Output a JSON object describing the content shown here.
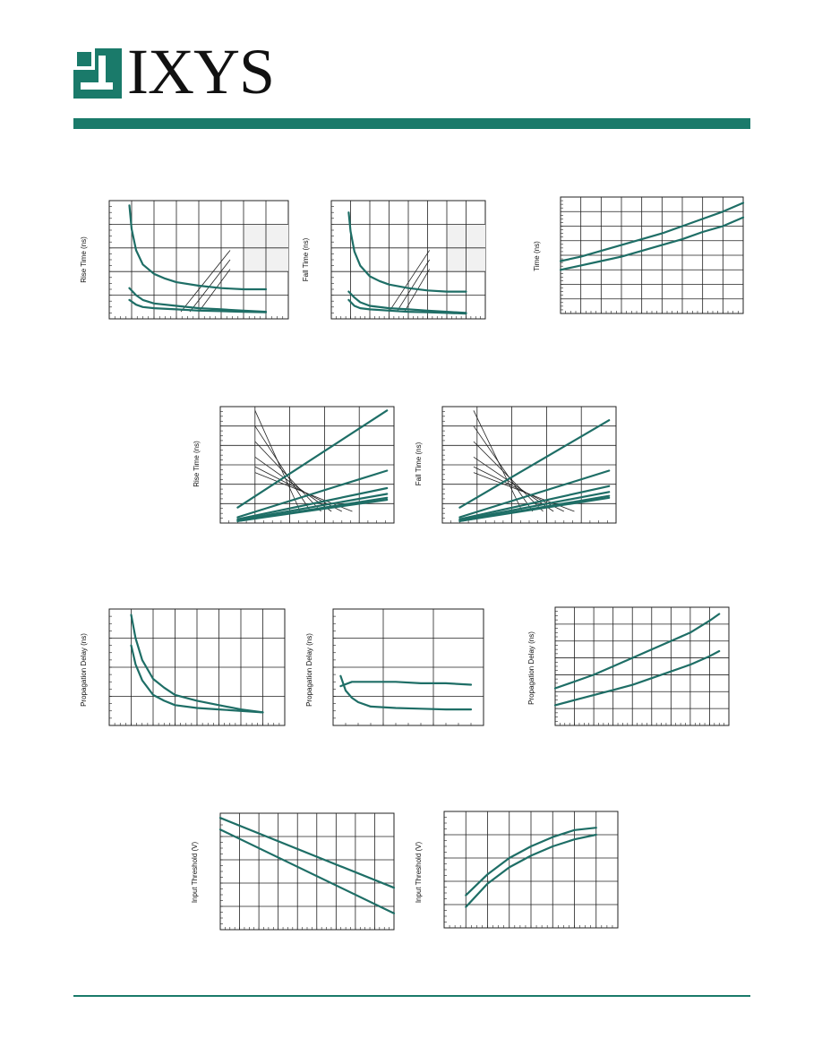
{
  "brand": {
    "name": "IXYS",
    "color": "#1a7a6a"
  },
  "colors": {
    "curve": "#1e6e66",
    "grid": "#222222",
    "plot_bg": "#ffffff",
    "shade": "#f1f1f1"
  },
  "chart_data": [
    {
      "type": "line",
      "ylabel": "Rise Time (ns)",
      "xlim": [
        0,
        8
      ],
      "ylim": [
        0,
        10
      ],
      "xgrid": 8,
      "ygrid": 5,
      "shade": true,
      "series": [
        {
          "x": [
            0.9,
            1.0,
            1.2,
            1.5,
            2,
            2.5,
            3,
            4,
            5,
            6,
            7
          ],
          "y": [
            9.6,
            7.6,
            5.8,
            4.6,
            3.8,
            3.4,
            3.1,
            2.8,
            2.6,
            2.5,
            2.5
          ]
        },
        {
          "x": [
            0.9,
            1.2,
            1.5,
            2,
            3,
            4,
            5,
            6,
            7
          ],
          "y": [
            2.6,
            2.0,
            1.6,
            1.3,
            1.1,
            0.9,
            0.8,
            0.7,
            0.6
          ]
        },
        {
          "x": [
            0.9,
            1.2,
            1.5,
            2,
            3,
            4,
            5,
            6,
            7
          ],
          "y": [
            1.6,
            1.2,
            1.0,
            0.9,
            0.8,
            0.7,
            0.65,
            0.6,
            0.55
          ]
        }
      ],
      "callouts": [
        {
          "x": [
            3.2,
            5.4
          ],
          "y": [
            0.6,
            5.8
          ]
        },
        {
          "x": [
            3.6,
            5.4
          ],
          "y": [
            0.6,
            5.0
          ]
        },
        {
          "x": [
            4.0,
            5.4
          ],
          "y": [
            0.6,
            4.2
          ]
        }
      ]
    },
    {
      "type": "line",
      "ylabel": "Fall Time (ns)",
      "xlim": [
        0,
        8
      ],
      "ylim": [
        0,
        10
      ],
      "xgrid": 8,
      "ygrid": 5,
      "shade": true,
      "series": [
        {
          "x": [
            0.9,
            1.0,
            1.2,
            1.5,
            2,
            2.5,
            3,
            4,
            5,
            6,
            7
          ],
          "y": [
            9.0,
            7.4,
            5.7,
            4.5,
            3.6,
            3.2,
            2.9,
            2.6,
            2.4,
            2.3,
            2.3
          ]
        },
        {
          "x": [
            0.9,
            1.2,
            1.5,
            2,
            3,
            4,
            5,
            6,
            7
          ],
          "y": [
            2.3,
            1.8,
            1.4,
            1.1,
            0.9,
            0.8,
            0.7,
            0.6,
            0.5
          ]
        },
        {
          "x": [
            0.9,
            1.2,
            1.5,
            2,
            3,
            4,
            5,
            6,
            7
          ],
          "y": [
            1.6,
            1.1,
            0.9,
            0.8,
            0.7,
            0.6,
            0.55,
            0.5,
            0.45
          ]
        }
      ],
      "callouts": [
        {
          "x": [
            3.0,
            5.1
          ],
          "y": [
            0.6,
            5.8
          ]
        },
        {
          "x": [
            3.4,
            5.1
          ],
          "y": [
            0.6,
            5.0
          ]
        },
        {
          "x": [
            3.8,
            5.1
          ],
          "y": [
            0.6,
            4.2
          ]
        }
      ]
    },
    {
      "type": "line",
      "ylabel": "Time (ns)",
      "xlim": [
        0,
        9
      ],
      "ylim": [
        0,
        8
      ],
      "xgrid": 9,
      "ygrid": 8,
      "shade": false,
      "series": [
        {
          "x": [
            0,
            1,
            2,
            3,
            4,
            5,
            6,
            7,
            8,
            9
          ],
          "y": [
            3.6,
            3.9,
            4.3,
            4.7,
            5.1,
            5.5,
            6.0,
            6.5,
            7.0,
            7.6
          ]
        },
        {
          "x": [
            0,
            1,
            2,
            3,
            4,
            5,
            6,
            7,
            8,
            9
          ],
          "y": [
            3.0,
            3.3,
            3.6,
            3.9,
            4.3,
            4.7,
            5.1,
            5.6,
            6.0,
            6.6
          ]
        }
      ],
      "callouts": []
    },
    {
      "type": "line",
      "ylabel": "Rise Time (ns)",
      "xlim": [
        0,
        5
      ],
      "ylim": [
        0,
        6
      ],
      "xgrid": 5,
      "ygrid": 6,
      "shade": false,
      "series": [
        {
          "x": [
            0.5,
            4.8
          ],
          "y": [
            0.8,
            5.8
          ]
        },
        {
          "x": [
            0.5,
            4.8
          ],
          "y": [
            0.3,
            2.7
          ]
        },
        {
          "x": [
            0.5,
            4.8
          ],
          "y": [
            0.2,
            1.8
          ]
        },
        {
          "x": [
            0.5,
            4.8
          ],
          "y": [
            0.15,
            1.5
          ]
        },
        {
          "x": [
            0.5,
            4.8
          ],
          "y": [
            0.1,
            1.3
          ]
        },
        {
          "x": [
            0.5,
            4.8
          ],
          "y": [
            0.1,
            1.2
          ]
        }
      ],
      "callouts": [
        {
          "x": [
            1.0,
            2.3
          ],
          "y": [
            5.8,
            0.6
          ]
        },
        {
          "x": [
            1.0,
            2.6
          ],
          "y": [
            5.0,
            0.6
          ]
        },
        {
          "x": [
            1.0,
            2.9
          ],
          "y": [
            4.2,
            0.6
          ]
        },
        {
          "x": [
            1.0,
            3.2
          ],
          "y": [
            3.4,
            0.6
          ]
        },
        {
          "x": [
            1.0,
            3.5
          ],
          "y": [
            2.9,
            0.6
          ]
        },
        {
          "x": [
            1.0,
            3.8
          ],
          "y": [
            2.6,
            0.6
          ]
        }
      ]
    },
    {
      "type": "line",
      "ylabel": "Fall Time (ns)",
      "xlim": [
        0,
        5
      ],
      "ylim": [
        0,
        6
      ],
      "xgrid": 5,
      "ygrid": 6,
      "shade": false,
      "series": [
        {
          "x": [
            0.5,
            4.8
          ],
          "y": [
            0.8,
            5.3
          ]
        },
        {
          "x": [
            0.5,
            4.8
          ],
          "y": [
            0.3,
            2.7
          ]
        },
        {
          "x": [
            0.5,
            4.8
          ],
          "y": [
            0.2,
            1.9
          ]
        },
        {
          "x": [
            0.5,
            4.8
          ],
          "y": [
            0.15,
            1.6
          ]
        },
        {
          "x": [
            0.5,
            4.8
          ],
          "y": [
            0.1,
            1.4
          ]
        },
        {
          "x": [
            0.5,
            4.8
          ],
          "y": [
            0.1,
            1.3
          ]
        }
      ],
      "callouts": [
        {
          "x": [
            0.9,
            2.3
          ],
          "y": [
            5.8,
            0.6
          ]
        },
        {
          "x": [
            0.9,
            2.6
          ],
          "y": [
            5.0,
            0.6
          ]
        },
        {
          "x": [
            0.9,
            2.9
          ],
          "y": [
            4.2,
            0.6
          ]
        },
        {
          "x": [
            0.9,
            3.2
          ],
          "y": [
            3.4,
            0.6
          ]
        },
        {
          "x": [
            0.9,
            3.5
          ],
          "y": [
            2.9,
            0.6
          ]
        },
        {
          "x": [
            0.9,
            3.8
          ],
          "y": [
            2.6,
            0.6
          ]
        }
      ]
    },
    {
      "type": "line",
      "ylabel": "Propagation Delay (ns)",
      "xlim": [
        0,
        8
      ],
      "ylim": [
        0,
        8
      ],
      "xgrid": 8,
      "ygrid": 4,
      "shade": false,
      "series": [
        {
          "x": [
            1.0,
            1.2,
            1.5,
            2,
            2.5,
            3,
            4,
            5,
            6,
            7
          ],
          "y": [
            7.6,
            6.0,
            4.5,
            3.2,
            2.6,
            2.1,
            1.7,
            1.4,
            1.1,
            0.9
          ]
        },
        {
          "x": [
            1.0,
            1.2,
            1.5,
            2,
            2.5,
            3,
            4,
            5,
            6,
            7
          ],
          "y": [
            5.5,
            4.2,
            3.1,
            2.1,
            1.7,
            1.4,
            1.2,
            1.1,
            1.0,
            0.9
          ]
        }
      ],
      "callouts": []
    },
    {
      "type": "line",
      "ylabel": "Propagation Delay (ns)",
      "xlim": [
        0,
        12
      ],
      "ylim": [
        0,
        8
      ],
      "xgrid": 3,
      "ygrid": 4,
      "shade": false,
      "series": [
        {
          "x": [
            0.6,
            1,
            1.5,
            2,
            3,
            5,
            7,
            9,
            11
          ],
          "y": [
            3.4,
            2.4,
            1.9,
            1.6,
            1.3,
            1.2,
            1.15,
            1.1,
            1.1
          ]
        },
        {
          "x": [
            0.6,
            1.5,
            3,
            5,
            7,
            9,
            11
          ],
          "y": [
            2.7,
            3.0,
            3.0,
            3.0,
            2.9,
            2.9,
            2.8
          ]
        }
      ],
      "callouts": []
    },
    {
      "type": "line",
      "ylabel": "Propagation Delay (ns)",
      "xlim": [
        0,
        9
      ],
      "ylim": [
        0,
        7
      ],
      "xgrid": 9,
      "ygrid": 7,
      "shade": false,
      "series": [
        {
          "x": [
            0,
            1,
            2,
            3,
            4,
            5,
            6,
            7,
            8,
            8.5
          ],
          "y": [
            2.2,
            2.6,
            3.0,
            3.5,
            4.0,
            4.5,
            5.0,
            5.5,
            6.2,
            6.6
          ]
        },
        {
          "x": [
            0,
            1,
            2,
            3,
            4,
            5,
            6,
            7,
            8,
            8.5
          ],
          "y": [
            1.2,
            1.5,
            1.8,
            2.1,
            2.4,
            2.8,
            3.2,
            3.6,
            4.1,
            4.4
          ]
        }
      ],
      "callouts": []
    },
    {
      "type": "line",
      "ylabel": "Input Threshold (V)",
      "xlim": [
        0,
        9
      ],
      "ylim": [
        0,
        5
      ],
      "xgrid": 9,
      "ygrid": 5,
      "shade": false,
      "series": [
        {
          "x": [
            0,
            9
          ],
          "y": [
            4.8,
            1.8
          ]
        },
        {
          "x": [
            0,
            9
          ],
          "y": [
            4.3,
            0.7
          ]
        }
      ],
      "callouts": []
    },
    {
      "type": "line",
      "ylabel": "Input Threshold (V)",
      "xlim": [
        0,
        8
      ],
      "ylim": [
        0,
        5
      ],
      "xgrid": 8,
      "ygrid": 5,
      "shade": false,
      "series": [
        {
          "x": [
            1,
            2,
            3,
            4,
            5,
            6,
            7
          ],
          "y": [
            1.4,
            2.3,
            3.0,
            3.5,
            3.9,
            4.2,
            4.3
          ]
        },
        {
          "x": [
            1,
            2,
            3,
            4,
            5,
            6,
            7
          ],
          "y": [
            0.9,
            1.9,
            2.6,
            3.1,
            3.5,
            3.8,
            4.0
          ]
        }
      ],
      "callouts": []
    }
  ]
}
